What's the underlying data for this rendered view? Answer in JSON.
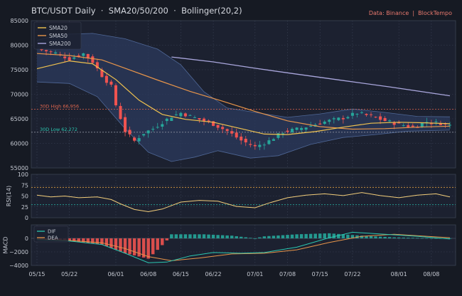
{
  "header": {
    "title": "BTC/USDT Daily  ·  SMA20/50/200  ·  Bollinger(20,2)",
    "source": "Data: Binance  |  BlockTempo"
  },
  "colors": {
    "background": "#161a23",
    "panel": "#1c2130",
    "up": "#26a69a",
    "down": "#ef5350",
    "sma20": "#f0c24f",
    "sma50": "#e8954a",
    "sma200": "#a9a6dc",
    "bb_fill": "#2b3a5c",
    "bb_line": "#4f6796",
    "high_line": "#e0664e",
    "low_line": "#8a8f9c",
    "rsi": "#f2cd7a",
    "rsi_70": "#e0a040",
    "rsi_30": "#26a69a",
    "dif": "#2bc7b0",
    "dea": "#e8954a"
  },
  "chart_data": [
    {
      "type": "candlestick",
      "panel": "price",
      "title": "BTC/USDT Daily  ·  SMA20/50/200  ·  Bollinger(20,2)",
      "ylim": [
        55000,
        85000
      ],
      "yticks": [
        55000,
        60000,
        65000,
        70000,
        75000,
        80000,
        85000
      ],
      "x_start": "2024-05-15",
      "x_end": "2024-08-12",
      "xticks": [
        "05/15",
        "05/22",
        "06/01",
        "06/08",
        "06/15",
        "06/22",
        "07/01",
        "07/08",
        "07/15",
        "07/22",
        "08/01",
        "08/08"
      ],
      "grid": true,
      "legend_position": "top-left",
      "series": [
        {
          "name": "SMA20",
          "kind": "line"
        },
        {
          "name": "SMA50",
          "kind": "line"
        },
        {
          "name": "SMA200",
          "kind": "line"
        }
      ],
      "close_path": [
        [
          "2024-05-15",
          79200
        ],
        [
          "2024-05-19",
          78400
        ],
        [
          "2024-05-22",
          77200
        ],
        [
          "2024-05-25",
          78300
        ],
        [
          "2024-05-27",
          76600
        ],
        [
          "2024-05-29",
          73800
        ],
        [
          "2024-05-31",
          71600
        ],
        [
          "2024-06-01",
          67800
        ],
        [
          "2024-06-03",
          62500
        ],
        [
          "2024-06-05",
          60500
        ],
        [
          "2024-06-07",
          62100
        ],
        [
          "2024-06-09",
          63000
        ],
        [
          "2024-06-11",
          64300
        ],
        [
          "2024-06-13",
          65500
        ],
        [
          "2024-06-15",
          66200
        ],
        [
          "2024-06-18",
          65200
        ],
        [
          "2024-06-22",
          63900
        ],
        [
          "2024-06-25",
          62500
        ],
        [
          "2024-06-28",
          60600
        ],
        [
          "2024-07-01",
          59300
        ],
        [
          "2024-07-04",
          60500
        ],
        [
          "2024-07-07",
          62300
        ],
        [
          "2024-07-10",
          62900
        ],
        [
          "2024-07-13",
          63600
        ],
        [
          "2024-07-16",
          64400
        ],
        [
          "2024-07-20",
          65200
        ],
        [
          "2024-07-23",
          66200
        ],
        [
          "2024-07-26",
          65500
        ],
        [
          "2024-07-29",
          64600
        ],
        [
          "2024-08-01",
          63900
        ],
        [
          "2024-08-04",
          63300
        ],
        [
          "2024-08-07",
          64400
        ],
        [
          "2024-08-10",
          64100
        ],
        [
          "2024-08-12",
          63700
        ]
      ],
      "sma20": [
        [
          "2024-05-15",
          75200
        ],
        [
          "2024-05-22",
          76800
        ],
        [
          "2024-05-27",
          76200
        ],
        [
          "2024-06-01",
          73000
        ],
        [
          "2024-06-06",
          68800
        ],
        [
          "2024-06-11",
          65900
        ],
        [
          "2024-06-16",
          64900
        ],
        [
          "2024-06-22",
          64300
        ],
        [
          "2024-06-28",
          63000
        ],
        [
          "2024-07-03",
          61900
        ],
        [
          "2024-07-08",
          61800
        ],
        [
          "2024-07-14",
          62400
        ],
        [
          "2024-07-20",
          63300
        ],
        [
          "2024-07-26",
          64100
        ],
        [
          "2024-08-01",
          64300
        ],
        [
          "2024-08-06",
          64200
        ],
        [
          "2024-08-12",
          64000
        ]
      ],
      "sma50": [
        [
          "2024-05-15",
          78300
        ],
        [
          "2024-05-22",
          77900
        ],
        [
          "2024-05-29",
          77000
        ],
        [
          "2024-06-03",
          75300
        ],
        [
          "2024-06-10",
          72900
        ],
        [
          "2024-06-17",
          70600
        ],
        [
          "2024-06-24",
          68600
        ],
        [
          "2024-07-01",
          66500
        ],
        [
          "2024-07-08",
          64600
        ],
        [
          "2024-07-15",
          63400
        ],
        [
          "2024-07-22",
          62900
        ],
        [
          "2024-07-29",
          63000
        ],
        [
          "2024-08-05",
          63300
        ],
        [
          "2024-08-12",
          63500
        ]
      ],
      "sma200": [
        [
          "2024-06-13",
          77600
        ],
        [
          "2024-06-22",
          76600
        ],
        [
          "2024-07-01",
          75300
        ],
        [
          "2024-07-10",
          74100
        ],
        [
          "2024-07-20",
          72800
        ],
        [
          "2024-07-30",
          71500
        ],
        [
          "2024-08-12",
          69700
        ]
      ],
      "bollinger_upper": [
        [
          "2024-05-15",
          81000
        ],
        [
          "2024-05-20",
          82200
        ],
        [
          "2024-05-27",
          82400
        ],
        [
          "2024-06-03",
          81300
        ],
        [
          "2024-06-10",
          79200
        ],
        [
          "2024-06-15",
          76000
        ],
        [
          "2024-06-20",
          70500
        ],
        [
          "2024-06-25",
          67200
        ],
        [
          "2024-07-01",
          66300
        ],
        [
          "2024-07-08",
          65300
        ],
        [
          "2024-07-15",
          66000
        ],
        [
          "2024-07-22",
          67000
        ],
        [
          "2024-07-29",
          66300
        ],
        [
          "2024-08-05",
          65500
        ],
        [
          "2024-08-12",
          65400
        ]
      ],
      "bollinger_lower": [
        [
          "2024-05-15",
          72500
        ],
        [
          "2024-05-22",
          72200
        ],
        [
          "2024-05-28",
          69500
        ],
        [
          "2024-06-03",
          63000
        ],
        [
          "2024-06-08",
          58200
        ],
        [
          "2024-06-13",
          56300
        ],
        [
          "2024-06-18",
          57200
        ],
        [
          "2024-06-23",
          58500
        ],
        [
          "2024-06-30",
          57000
        ],
        [
          "2024-07-06",
          57500
        ],
        [
          "2024-07-13",
          59800
        ],
        [
          "2024-07-20",
          61200
        ],
        [
          "2024-07-27",
          61800
        ],
        [
          "2024-08-03",
          62500
        ],
        [
          "2024-08-12",
          62700
        ]
      ],
      "reference_lines": [
        {
          "label": "30D High 66,956",
          "value": 66956
        },
        {
          "label": "30D Low 62,272",
          "value": 62272
        }
      ]
    },
    {
      "type": "line",
      "panel": "rsi",
      "ylabel": "RSI(14)",
      "ylim": [
        0,
        100
      ],
      "yticks": [
        0,
        25,
        50,
        75,
        100
      ],
      "levels": [
        70,
        30
      ],
      "series": [
        {
          "values": [
            [
              "2024-05-15",
              52
            ],
            [
              "2024-05-18",
              48
            ],
            [
              "2024-05-21",
              50
            ],
            [
              "2024-05-24",
              46
            ],
            [
              "2024-05-28",
              48
            ],
            [
              "2024-05-31",
              42
            ],
            [
              "2024-06-02",
              32
            ],
            [
              "2024-06-05",
              19
            ],
            [
              "2024-06-08",
              14
            ],
            [
              "2024-06-11",
              20
            ],
            [
              "2024-06-15",
              36
            ],
            [
              "2024-06-19",
              40
            ],
            [
              "2024-06-23",
              38
            ],
            [
              "2024-06-27",
              26
            ],
            [
              "2024-07-01",
              23
            ],
            [
              "2024-07-04",
              34
            ],
            [
              "2024-07-08",
              46
            ],
            [
              "2024-07-12",
              52
            ],
            [
              "2024-07-16",
              55
            ],
            [
              "2024-07-20",
              51
            ],
            [
              "2024-07-24",
              58
            ],
            [
              "2024-07-28",
              51
            ],
            [
              "2024-08-01",
              46
            ],
            [
              "2024-08-05",
              52
            ],
            [
              "2024-08-09",
              55
            ],
            [
              "2024-08-12",
              48
            ]
          ]
        }
      ]
    },
    {
      "type": "bar+line",
      "panel": "macd",
      "ylabel": "MACD",
      "ylim": [
        -4000,
        2000
      ],
      "yticks": [
        -4000,
        -2000,
        0
      ],
      "legend_position": "top-left",
      "series": [
        {
          "name": "DIF",
          "kind": "line",
          "values": [
            [
              "2024-05-15",
              -200
            ],
            [
              "2024-05-22",
              -400
            ],
            [
              "2024-05-29",
              -900
            ],
            [
              "2024-06-03",
              -2200
            ],
            [
              "2024-06-08",
              -3600
            ],
            [
              "2024-06-12",
              -3500
            ],
            [
              "2024-06-17",
              -2600
            ],
            [
              "2024-06-22",
              -2100
            ],
            [
              "2024-06-28",
              -2200
            ],
            [
              "2024-07-03",
              -2100
            ],
            [
              "2024-07-10",
              -1300
            ],
            [
              "2024-07-17",
              100
            ],
            [
              "2024-07-22",
              900
            ],
            [
              "2024-07-29",
              600
            ],
            [
              "2024-08-05",
              300
            ],
            [
              "2024-08-12",
              -100
            ]
          ]
        },
        {
          "name": "DEA",
          "kind": "line",
          "values": [
            [
              "2024-05-15",
              -100
            ],
            [
              "2024-05-22",
              -300
            ],
            [
              "2024-05-29",
              -650
            ],
            [
              "2024-06-03",
              -1500
            ],
            [
              "2024-06-08",
              -2700
            ],
            [
              "2024-06-13",
              -3300
            ],
            [
              "2024-06-19",
              -2900
            ],
            [
              "2024-06-26",
              -2300
            ],
            [
              "2024-07-03",
              -2200
            ],
            [
              "2024-07-10",
              -1700
            ],
            [
              "2024-07-17",
              -600
            ],
            [
              "2024-07-24",
              300
            ],
            [
              "2024-07-31",
              600
            ],
            [
              "2024-08-07",
              300
            ],
            [
              "2024-08-12",
              100
            ]
          ]
        },
        {
          "name": "histogram",
          "kind": "bar",
          "values": [
            [
              "2024-05-15",
              -200
            ],
            [
              "2024-05-22",
              -400
            ],
            [
              "2024-05-29",
              -900
            ],
            [
              "2024-06-03",
              -2200
            ],
            [
              "2024-06-08",
              -3000
            ],
            [
              "2024-06-10",
              -1700
            ],
            [
              "2024-06-12",
              -300
            ],
            [
              "2024-06-13",
              600
            ],
            [
              "2024-06-20",
              600
            ],
            [
              "2024-06-26",
              400
            ],
            [
              "2024-07-01",
              0
            ],
            [
              "2024-07-03",
              300
            ],
            [
              "2024-07-10",
              600
            ],
            [
              "2024-07-17",
              750
            ],
            [
              "2024-07-24",
              400
            ],
            [
              "2024-07-31",
              150
            ],
            [
              "2024-08-06",
              50
            ],
            [
              "2024-08-12",
              20
            ]
          ]
        }
      ]
    }
  ]
}
